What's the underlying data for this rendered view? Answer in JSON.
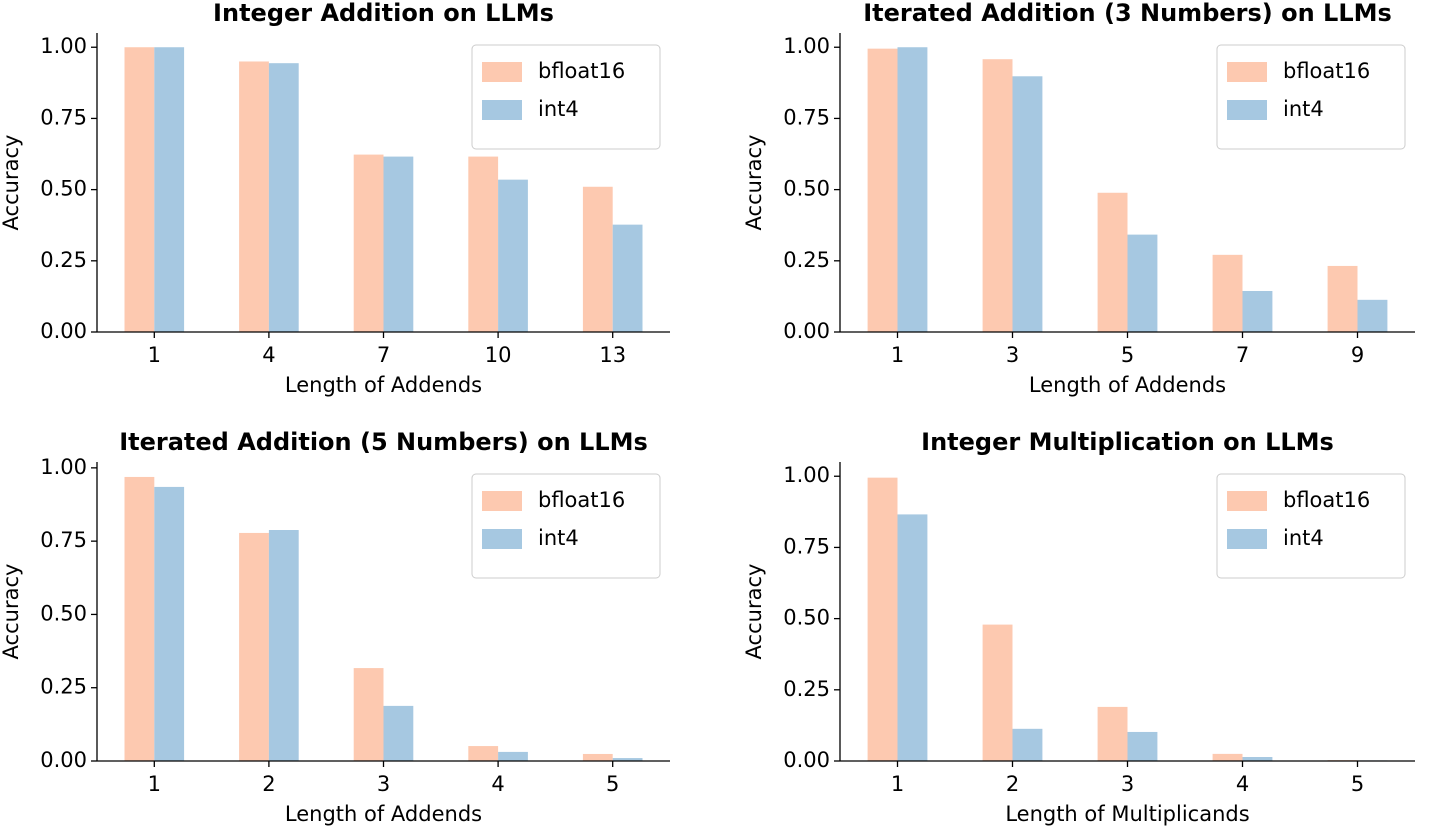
{
  "chart_data": [
    {
      "type": "bar",
      "title": "Integer Addition on LLMs",
      "xlabel": "Length of Addends",
      "ylabel": "Accuracy",
      "categories": [
        "1",
        "4",
        "7",
        "10",
        "13"
      ],
      "series": [
        {
          "name": "bfloat16",
          "color": "#fdc9b0",
          "values": [
            1.0,
            0.95,
            0.623,
            0.616,
            0.51
          ]
        },
        {
          "name": "int4",
          "color": "#a6c8e1",
          "values": [
            1.0,
            0.944,
            0.616,
            0.535,
            0.377
          ]
        }
      ],
      "ylim": [
        0,
        1.05
      ],
      "yticks": [
        {
          "value": 0,
          "label": "0.00"
        },
        0.25,
        {
          "value": 0.5,
          "label": "0.50"
        },
        0.75,
        {
          "value": 1,
          "label": "1.00"
        }
      ],
      "grid": false,
      "legend": "upper right"
    },
    {
      "type": "bar",
      "title": "Iterated Addition (3 Numbers) on LLMs",
      "xlabel": "Length of Addends",
      "ylabel": "Accuracy",
      "categories": [
        "1",
        "3",
        "5",
        "7",
        "9"
      ],
      "series": [
        {
          "name": "bfloat16",
          "color": "#fdc9b0",
          "values": [
            0.995,
            0.958,
            0.489,
            0.271,
            0.232
          ]
        },
        {
          "name": "int4",
          "color": "#a6c8e1",
          "values": [
            1.0,
            0.898,
            0.342,
            0.144,
            0.113
          ]
        }
      ],
      "ylim": [
        0,
        1.05
      ],
      "yticks": [
        {
          "value": 0,
          "label": "0.00"
        },
        0.25,
        {
          "value": 0.5,
          "label": "0.50"
        },
        0.75,
        {
          "value": 1,
          "label": "1.00"
        }
      ],
      "grid": false,
      "legend": "upper right"
    },
    {
      "type": "bar",
      "title": "Iterated Addition (5 Numbers) on LLMs",
      "xlabel": "Length of Addends",
      "ylabel": "Accuracy",
      "categories": [
        "1",
        "2",
        "3",
        "4",
        "5"
      ],
      "series": [
        {
          "name": "bfloat16",
          "color": "#fdc9b0",
          "values": [
            0.969,
            0.778,
            0.317,
            0.051,
            0.024
          ]
        },
        {
          "name": "int4",
          "color": "#a6c8e1",
          "values": [
            0.935,
            0.788,
            0.188,
            0.031,
            0.01
          ]
        }
      ],
      "ylim": [
        0,
        1.02
      ],
      "yticks": [
        {
          "value": 0,
          "label": "0.00"
        },
        0.25,
        {
          "value": 0.5,
          "label": "0.50"
        },
        0.75,
        {
          "value": 1,
          "label": "1.00"
        }
      ],
      "grid": false,
      "legend": "upper right"
    },
    {
      "type": "bar",
      "title": "Integer Multiplication on LLMs",
      "xlabel": "Length of Multiplicands",
      "ylabel": "Accuracy",
      "categories": [
        "1",
        "2",
        "3",
        "4",
        "5"
      ],
      "series": [
        {
          "name": "bfloat16",
          "color": "#fdc9b0",
          "values": [
            0.995,
            0.479,
            0.19,
            0.025,
            0.003
          ]
        },
        {
          "name": "int4",
          "color": "#a6c8e1",
          "values": [
            0.866,
            0.113,
            0.102,
            0.014,
            0.002
          ]
        }
      ],
      "ylim": [
        0,
        1.05
      ],
      "yticks": [
        {
          "value": 0,
          "label": "0.00"
        },
        0.25,
        {
          "value": 0.5,
          "label": "0.50"
        },
        0.75,
        {
          "value": 1,
          "label": "1.00"
        }
      ],
      "grid": false,
      "legend": "upper right"
    }
  ]
}
